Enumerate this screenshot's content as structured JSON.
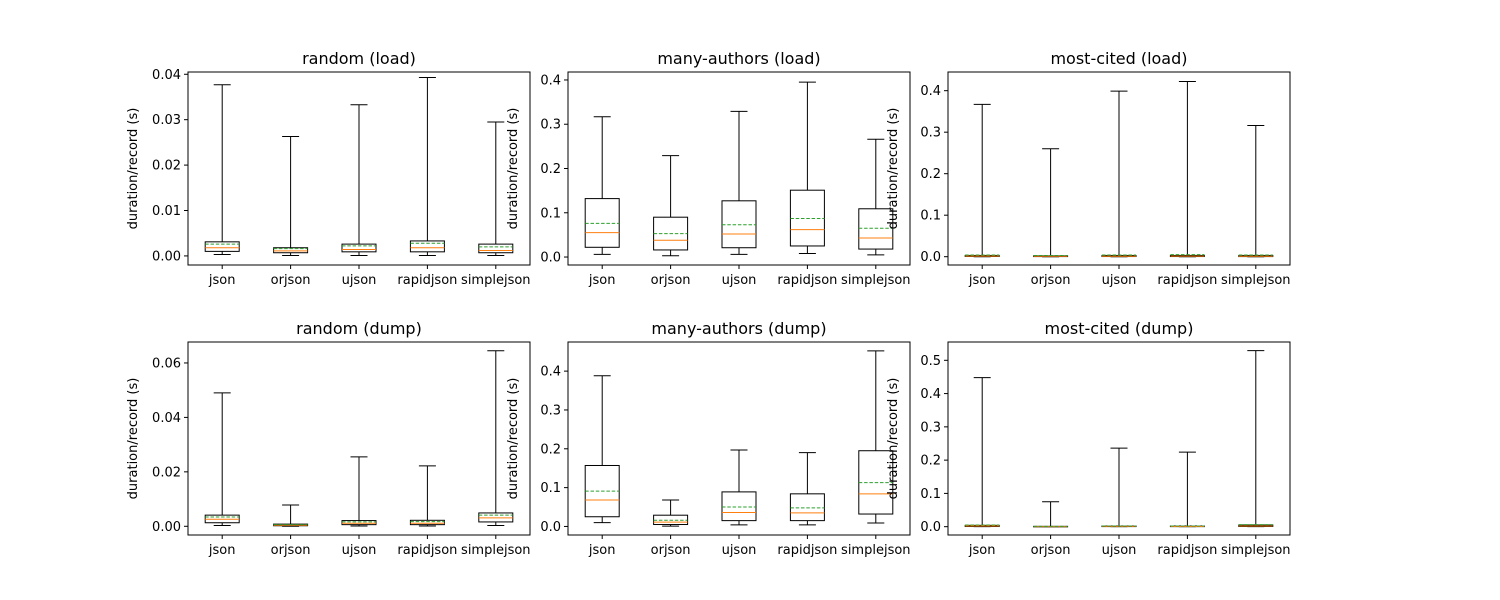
{
  "chart_data": [
    {
      "type": "box",
      "title": "random (load)",
      "ylabel": "duration/record (s)",
      "categories": [
        "json",
        "orjson",
        "ujson",
        "rapidjson",
        "simplejson"
      ],
      "ylim": [
        -0.002,
        0.0405
      ],
      "yticks": [
        0.0,
        0.01,
        0.02,
        0.03,
        0.04
      ],
      "ytick_labels": [
        "0.00",
        "0.01",
        "0.02",
        "0.03",
        "0.04"
      ],
      "boxes": [
        {
          "whislo": 0.0003,
          "q1": 0.001,
          "med": 0.0018,
          "mean": 0.0026,
          "q3": 0.0031,
          "whishi": 0.0377
        },
        {
          "whislo": 0.0001,
          "q1": 0.0007,
          "med": 0.0011,
          "mean": 0.0016,
          "q3": 0.0018,
          "whishi": 0.0263
        },
        {
          "whislo": 0.0001,
          "q1": 0.0009,
          "med": 0.0014,
          "mean": 0.0022,
          "q3": 0.0026,
          "whishi": 0.0333
        },
        {
          "whislo": 0.0001,
          "q1": 0.0009,
          "med": 0.0018,
          "mean": 0.0028,
          "q3": 0.0033,
          "whishi": 0.0393
        },
        {
          "whislo": 0.0001,
          "q1": 0.0007,
          "med": 0.0012,
          "mean": 0.002,
          "q3": 0.0026,
          "whishi": 0.0295
        }
      ]
    },
    {
      "type": "box",
      "title": "many-authors (load)",
      "ylabel": "duration/record (s)",
      "categories": [
        "json",
        "orjson",
        "ujson",
        "rapidjson",
        "simplejson"
      ],
      "ylim": [
        -0.018,
        0.418
      ],
      "yticks": [
        0.0,
        0.1,
        0.2,
        0.3,
        0.4
      ],
      "ytick_labels": [
        "0.0",
        "0.1",
        "0.2",
        "0.3",
        "0.4"
      ],
      "boxes": [
        {
          "whislo": 0.006,
          "q1": 0.022,
          "med": 0.055,
          "mean": 0.076,
          "q3": 0.132,
          "whishi": 0.317
        },
        {
          "whislo": 0.003,
          "q1": 0.016,
          "med": 0.038,
          "mean": 0.053,
          "q3": 0.09,
          "whishi": 0.229
        },
        {
          "whislo": 0.006,
          "q1": 0.021,
          "med": 0.052,
          "mean": 0.073,
          "q3": 0.127,
          "whishi": 0.329
        },
        {
          "whislo": 0.008,
          "q1": 0.025,
          "med": 0.062,
          "mean": 0.087,
          "q3": 0.151,
          "whishi": 0.395
        },
        {
          "whislo": 0.005,
          "q1": 0.018,
          "med": 0.043,
          "mean": 0.065,
          "q3": 0.109,
          "whishi": 0.266
        }
      ]
    },
    {
      "type": "box",
      "title": "most-cited (load)",
      "ylabel": "duration/record (s)",
      "categories": [
        "json",
        "orjson",
        "ujson",
        "rapidjson",
        "simplejson"
      ],
      "ylim": [
        -0.02,
        0.445
      ],
      "yticks": [
        0.0,
        0.1,
        0.2,
        0.3,
        0.4
      ],
      "ytick_labels": [
        "0.0",
        "0.1",
        "0.2",
        "0.3",
        "0.4"
      ],
      "boxes": [
        {
          "whislo": 0.0,
          "q1": 0.0005,
          "med": 0.0015,
          "mean": 0.004,
          "q3": 0.003,
          "whishi": 0.367
        },
        {
          "whislo": 0.0,
          "q1": 0.0003,
          "med": 0.001,
          "mean": 0.003,
          "q3": 0.002,
          "whishi": 0.26
        },
        {
          "whislo": 0.0,
          "q1": 0.0004,
          "med": 0.0012,
          "mean": 0.004,
          "q3": 0.003,
          "whishi": 0.399
        },
        {
          "whislo": 0.0,
          "q1": 0.0004,
          "med": 0.0014,
          "mean": 0.005,
          "q3": 0.003,
          "whishi": 0.422
        },
        {
          "whislo": 0.0,
          "q1": 0.0003,
          "med": 0.0011,
          "mean": 0.004,
          "q3": 0.003,
          "whishi": 0.316
        }
      ]
    },
    {
      "type": "box",
      "title": "random (dump)",
      "ylabel": "duration/record (s)",
      "categories": [
        "json",
        "orjson",
        "ujson",
        "rapidjson",
        "simplejson"
      ],
      "ylim": [
        -0.0032,
        0.0677
      ],
      "yticks": [
        0.0,
        0.02,
        0.04,
        0.06
      ],
      "ytick_labels": [
        "0.00",
        "0.02",
        "0.04",
        "0.06"
      ],
      "boxes": [
        {
          "whislo": 0.0003,
          "q1": 0.0013,
          "med": 0.0026,
          "mean": 0.0034,
          "q3": 0.0041,
          "whishi": 0.049
        },
        {
          "whislo": 0.0,
          "q1": 0.0002,
          "med": 0.0004,
          "mean": 0.0006,
          "q3": 0.0008,
          "whishi": 0.0078
        },
        {
          "whislo": 0.0001,
          "q1": 0.0006,
          "med": 0.0011,
          "mean": 0.0016,
          "q3": 0.0021,
          "whishi": 0.0255
        },
        {
          "whislo": 0.0001,
          "q1": 0.0006,
          "med": 0.0011,
          "mean": 0.0017,
          "q3": 0.0022,
          "whishi": 0.0222
        },
        {
          "whislo": 0.0003,
          "q1": 0.0016,
          "med": 0.0031,
          "mean": 0.0041,
          "q3": 0.0049,
          "whishi": 0.0645
        }
      ]
    },
    {
      "type": "box",
      "title": "many-authors (dump)",
      "ylabel": "duration/record (s)",
      "categories": [
        "json",
        "orjson",
        "ujson",
        "rapidjson",
        "simplejson"
      ],
      "ylim": [
        -0.022,
        0.475
      ],
      "yticks": [
        0.0,
        0.1,
        0.2,
        0.3,
        0.4
      ],
      "ytick_labels": [
        "0.0",
        "0.1",
        "0.2",
        "0.3",
        "0.4"
      ],
      "boxes": [
        {
          "whislo": 0.01,
          "q1": 0.025,
          "med": 0.068,
          "mean": 0.091,
          "q3": 0.157,
          "whishi": 0.388
        },
        {
          "whislo": 0.001,
          "q1": 0.005,
          "med": 0.011,
          "mean": 0.016,
          "q3": 0.029,
          "whishi": 0.068
        },
        {
          "whislo": 0.004,
          "q1": 0.015,
          "med": 0.036,
          "mean": 0.05,
          "q3": 0.089,
          "whishi": 0.197
        },
        {
          "whislo": 0.004,
          "q1": 0.015,
          "med": 0.035,
          "mean": 0.048,
          "q3": 0.084,
          "whishi": 0.19
        },
        {
          "whislo": 0.009,
          "q1": 0.032,
          "med": 0.084,
          "mean": 0.113,
          "q3": 0.195,
          "whishi": 0.452
        }
      ]
    },
    {
      "type": "box",
      "title": "most-cited (dump)",
      "ylabel": "duration/record (s)",
      "categories": [
        "json",
        "orjson",
        "ujson",
        "rapidjson",
        "simplejson"
      ],
      "ylim": [
        -0.025,
        0.555
      ],
      "yticks": [
        0.0,
        0.1,
        0.2,
        0.3,
        0.4,
        0.5
      ],
      "ytick_labels": [
        "0.0",
        "0.1",
        "0.2",
        "0.3",
        "0.4",
        "0.5"
      ],
      "boxes": [
        {
          "whislo": 0.0,
          "q1": 0.0005,
          "med": 0.002,
          "mean": 0.005,
          "q3": 0.004,
          "whishi": 0.448
        },
        {
          "whislo": 0.0,
          "q1": 0.0001,
          "med": 0.0003,
          "mean": 0.001,
          "q3": 0.001,
          "whishi": 0.075
        },
        {
          "whislo": 0.0,
          "q1": 0.0003,
          "med": 0.0008,
          "mean": 0.002,
          "q3": 0.002,
          "whishi": 0.236
        },
        {
          "whislo": 0.0,
          "q1": 0.0002,
          "med": 0.0007,
          "mean": 0.002,
          "q3": 0.002,
          "whishi": 0.224
        },
        {
          "whislo": 0.0,
          "q1": 0.0006,
          "med": 0.002,
          "mean": 0.006,
          "q3": 0.005,
          "whishi": 0.529
        }
      ]
    }
  ],
  "colors": {
    "box": "#000000",
    "median": "#ff7f0e",
    "mean": "#2ca02c",
    "axes": "#000000",
    "background": "#ffffff"
  }
}
